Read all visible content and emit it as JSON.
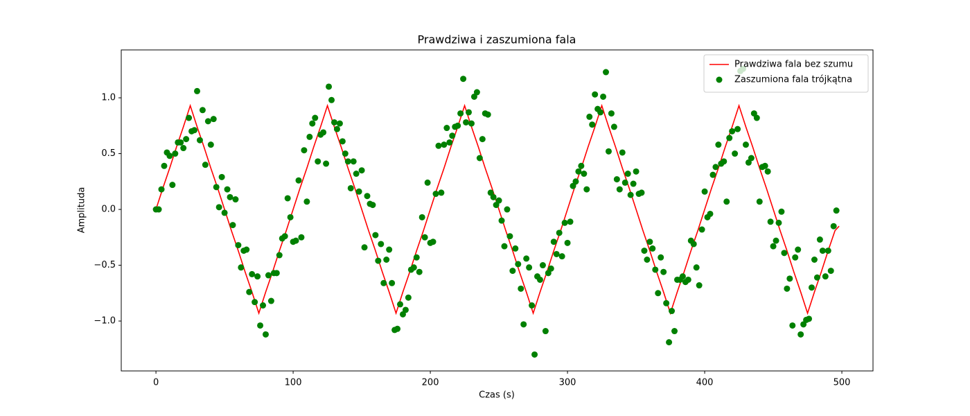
{
  "chart_data": {
    "type": "line",
    "title": "Prawdziwa i zaszumiona fala",
    "xlabel": "Czas (s)",
    "ylabel": "Amplituda",
    "xlim": [
      -25.3,
      522.7
    ],
    "ylim": [
      -1.447,
      1.429
    ],
    "xticks": [
      0,
      100,
      200,
      300,
      400,
      500
    ],
    "yticks": [
      {
        "value": -1.0,
        "label": "−1.0"
      },
      {
        "value": -0.5,
        "label": "−0.5"
      },
      {
        "value": 0,
        "label": "0.0"
      },
      {
        "value": 0.5,
        "label": "0.5"
      },
      {
        "value": 1.0,
        "label": "1.0"
      }
    ],
    "legend": "upper right",
    "series": [
      {
        "name": "Prawdziwa fala bez szumu",
        "type": "line",
        "color": "#ff0000",
        "x": [
          0,
          5,
          10,
          15,
          20,
          25,
          30,
          35,
          40,
          45,
          50,
          55,
          60,
          65,
          70,
          75,
          80,
          85,
          90,
          95,
          100,
          105,
          110,
          115,
          120,
          125,
          130,
          135,
          140,
          145,
          150,
          155,
          160,
          165,
          170,
          175,
          180,
          185,
          190,
          195,
          200,
          205,
          210,
          215,
          220,
          225,
          230,
          235,
          240,
          245,
          250,
          255,
          260,
          265,
          270,
          275,
          280,
          285,
          290,
          295,
          300,
          305,
          310,
          315,
          320,
          325,
          330,
          335,
          340,
          345,
          350,
          355,
          360,
          365,
          370,
          375,
          380,
          385,
          390,
          395,
          400,
          405,
          410,
          415,
          420,
          425,
          430,
          435,
          440,
          445,
          450,
          455,
          460,
          465,
          470,
          475,
          480,
          485,
          490,
          495,
          498
        ],
        "values": [
          0,
          0.19,
          0.37,
          0.56,
          0.74,
          0.93,
          0.74,
          0.56,
          0.37,
          0.19,
          0,
          -0.19,
          -0.37,
          -0.56,
          -0.74,
          -0.93,
          -0.74,
          -0.56,
          -0.37,
          -0.19,
          0,
          0.19,
          0.37,
          0.56,
          0.74,
          0.93,
          0.74,
          0.56,
          0.37,
          0.19,
          0,
          -0.19,
          -0.37,
          -0.56,
          -0.74,
          -0.93,
          -0.74,
          -0.56,
          -0.37,
          -0.19,
          0,
          0.19,
          0.37,
          0.56,
          0.74,
          0.93,
          0.74,
          0.56,
          0.37,
          0.19,
          0,
          -0.19,
          -0.37,
          -0.56,
          -0.74,
          -0.93,
          -0.74,
          -0.56,
          -0.37,
          -0.19,
          0,
          0.19,
          0.37,
          0.56,
          0.74,
          0.93,
          0.74,
          0.56,
          0.37,
          0.19,
          0,
          -0.19,
          -0.37,
          -0.56,
          -0.74,
          -0.93,
          -0.74,
          -0.56,
          -0.37,
          -0.19,
          0,
          0.19,
          0.37,
          0.56,
          0.74,
          0.93,
          0.74,
          0.56,
          0.37,
          0.19,
          0,
          -0.19,
          -0.37,
          -0.56,
          -0.74,
          -0.93,
          -0.74,
          -0.56,
          -0.37,
          -0.19,
          -0.15
        ]
      },
      {
        "name": "Zaszumiona fala trójkątna",
        "type": "scatter",
        "color": "#008000",
        "x": [
          0,
          2,
          4,
          6,
          8,
          10,
          12,
          14,
          16,
          18,
          20,
          22,
          24,
          26,
          28,
          30,
          32,
          34,
          36,
          38,
          40,
          42,
          44,
          46,
          48,
          50,
          52,
          54,
          56,
          58,
          60,
          62,
          64,
          66,
          68,
          70,
          72,
          74,
          76,
          78,
          80,
          82,
          84,
          86,
          88,
          90,
          92,
          94,
          96,
          98,
          100,
          102,
          104,
          106,
          108,
          110,
          112,
          114,
          116,
          118,
          120,
          122,
          124,
          126,
          128,
          130,
          132,
          134,
          136,
          138,
          140,
          142,
          144,
          146,
          148,
          150,
          152,
          154,
          156,
          158,
          160,
          162,
          164,
          166,
          168,
          170,
          172,
          174,
          176,
          178,
          180,
          182,
          184,
          186,
          188,
          190,
          192,
          194,
          196,
          198,
          200,
          202,
          204,
          206,
          208,
          210,
          212,
          214,
          216,
          218,
          220,
          222,
          224,
          226,
          228,
          230,
          232,
          234,
          236,
          238,
          240,
          242,
          244,
          246,
          248,
          250,
          252,
          254,
          256,
          258,
          260,
          262,
          264,
          266,
          268,
          270,
          272,
          274,
          276,
          278,
          280,
          282,
          284,
          286,
          288,
          290,
          292,
          294,
          296,
          298,
          300,
          302,
          304,
          306,
          308,
          310,
          312,
          314,
          316,
          318,
          320,
          322,
          324,
          326,
          328,
          330,
          332,
          334,
          336,
          338,
          340,
          342,
          344,
          346,
          348,
          350,
          352,
          354,
          356,
          358,
          360,
          362,
          364,
          366,
          368,
          370,
          372,
          374,
          376,
          378,
          380,
          382,
          384,
          386,
          388,
          390,
          392,
          394,
          396,
          398,
          400,
          402,
          404,
          406,
          408,
          410,
          412,
          414,
          416,
          418,
          420,
          422,
          424,
          426,
          428,
          430,
          432,
          434,
          436,
          438,
          440,
          442,
          444,
          446,
          448,
          450,
          452,
          454,
          456,
          458,
          460,
          462,
          464,
          466,
          468,
          470,
          472,
          474,
          476,
          478,
          480,
          482,
          484,
          486,
          488,
          490,
          492,
          494,
          496
        ],
        "values": [
          0,
          0,
          0.18,
          0.39,
          0.51,
          0.48,
          0.22,
          0.5,
          0.6,
          0.6,
          0.55,
          0.63,
          0.82,
          0.7,
          0.71,
          1.06,
          0.62,
          0.89,
          0.4,
          0.79,
          0.58,
          0.81,
          0.2,
          0.02,
          0.29,
          -0.03,
          0.18,
          0.11,
          -0.14,
          0.09,
          -0.32,
          -0.52,
          -0.37,
          -0.36,
          -0.74,
          -0.58,
          -0.83,
          -0.6,
          -1.04,
          -0.86,
          -1.12,
          -0.59,
          -0.82,
          -0.57,
          -0.57,
          -0.41,
          -0.26,
          -0.24,
          0.1,
          -0.07,
          -0.29,
          -0.28,
          0.26,
          -0.25,
          0.53,
          0.07,
          0.65,
          0.77,
          0.82,
          0.43,
          0.67,
          0.69,
          0.41,
          1.1,
          0.98,
          0.78,
          0.72,
          0.77,
          0.61,
          0.5,
          0.43,
          0.19,
          0.43,
          0.32,
          0.16,
          0.35,
          -0.34,
          0.12,
          0.05,
          0.04,
          -0.23,
          -0.46,
          -0.31,
          -0.66,
          -0.45,
          -0.36,
          -0.66,
          -1.08,
          -1.07,
          -0.85,
          -0.94,
          -0.9,
          -0.79,
          -0.54,
          -0.52,
          -0.43,
          -0.56,
          -0.07,
          -0.25,
          0.24,
          -0.3,
          -0.29,
          0.14,
          0.57,
          0.15,
          0.58,
          0.73,
          0.6,
          0.66,
          0.74,
          0.75,
          0.86,
          1.17,
          0.78,
          0.87,
          0.77,
          1.01,
          1.05,
          0.46,
          0.63,
          0.86,
          0.85,
          0.15,
          0.11,
          0.04,
          0.08,
          -0.1,
          -0.33,
          0,
          -0.24,
          -0.55,
          -0.35,
          -0.49,
          -0.71,
          -1.03,
          -0.44,
          -0.52,
          -0.86,
          -1.3,
          -0.6,
          -0.63,
          -0.5,
          -1.09,
          -0.57,
          -0.53,
          -0.29,
          -0.4,
          -0.21,
          -0.42,
          -0.12,
          -0.3,
          -0.11,
          0.21,
          0.25,
          0.34,
          0.39,
          0.32,
          0.18,
          0.83,
          0.76,
          1.03,
          0.9,
          0.87,
          1.01,
          1.23,
          0.52,
          0.86,
          0.74,
          0.27,
          0.18,
          0.51,
          0.24,
          0.32,
          0.13,
          0.23,
          0.34,
          0.14,
          0.15,
          -0.37,
          -0.45,
          -0.29,
          -0.35,
          -0.54,
          -0.75,
          -0.43,
          -0.56,
          -0.84,
          -1.19,
          -0.91,
          -1.09,
          -0.63,
          -0.63,
          -0.6,
          -0.65,
          -0.63,
          -0.28,
          -0.31,
          -0.52,
          -0.68,
          -0.18,
          0.16,
          -0.07,
          -0.04,
          0.31,
          0.38,
          0.58,
          0.41,
          0.43,
          0.07,
          0.64,
          0.7,
          0.5,
          0.72,
          1.24,
          1.26,
          0.58,
          0.42,
          0.46,
          0.86,
          0.82,
          0.07,
          0.38,
          0.39,
          0.34,
          -0.11,
          -0.33,
          -0.28,
          -0.12,
          -0.02,
          -0.39,
          -0.71,
          -0.62,
          -1.04,
          -0.43,
          -0.36,
          -1.12,
          -1.03,
          -0.99,
          -0.98,
          -0.7,
          -0.45,
          -0.61,
          -0.27,
          -0.37,
          -0.6,
          -0.37,
          -0.55,
          -0.15,
          -0.01
        ]
      }
    ]
  }
}
